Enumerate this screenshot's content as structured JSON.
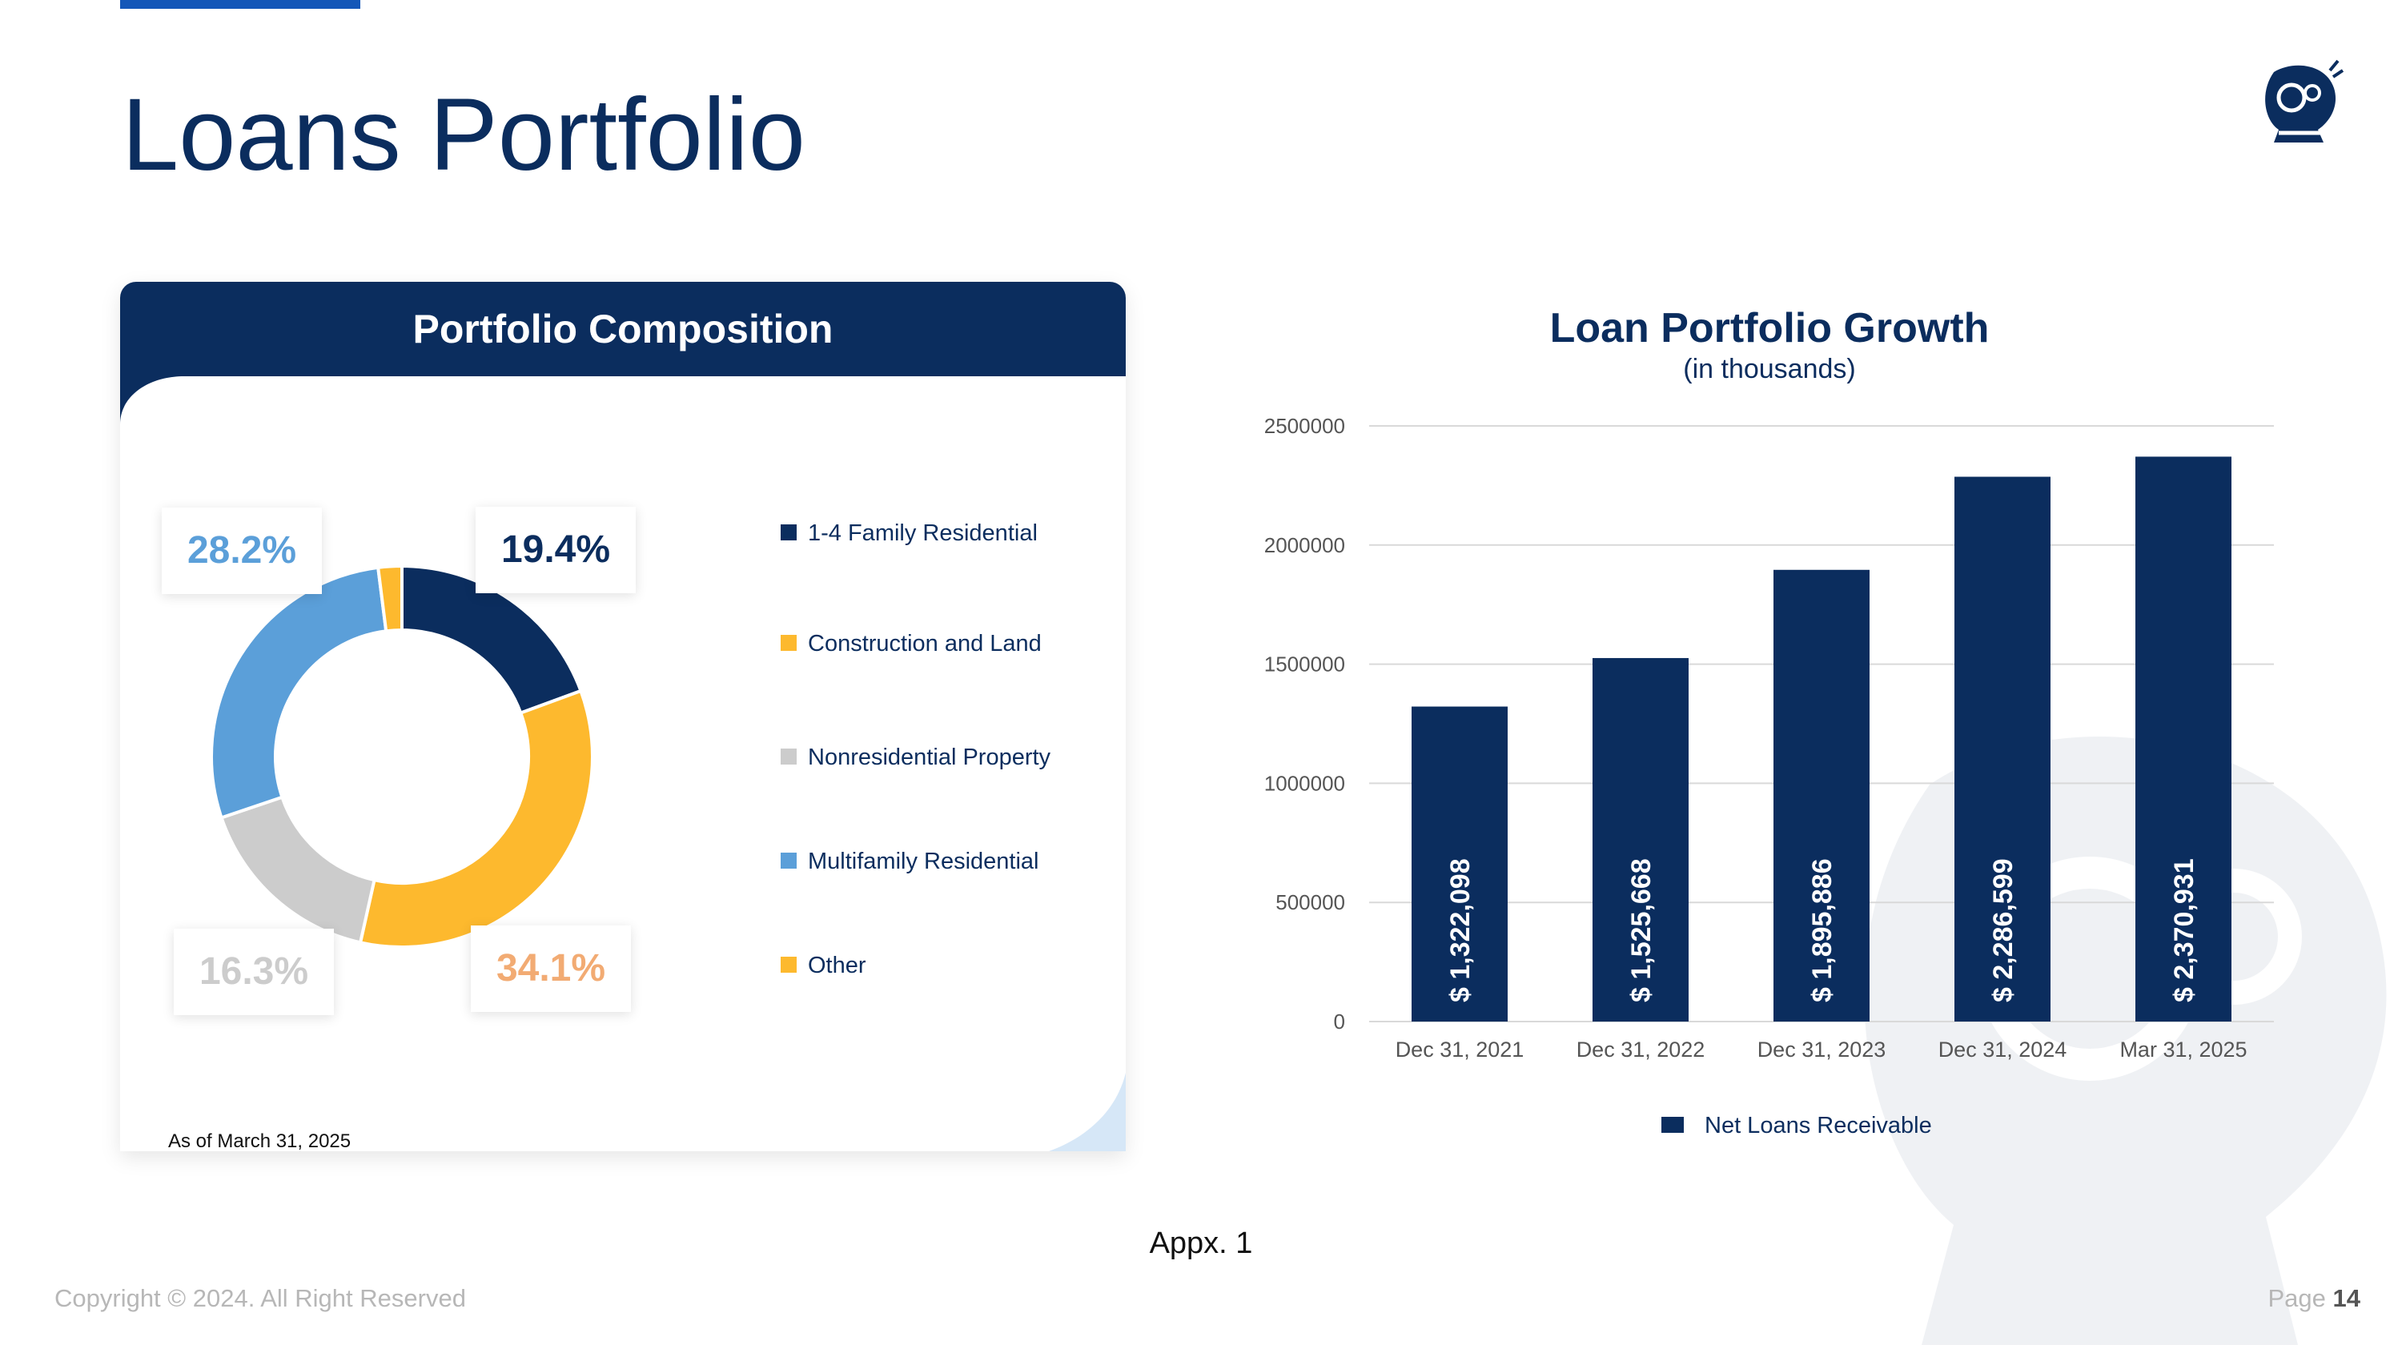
{
  "page": {
    "title": "Loans Portfolio",
    "appendix_label": "Appx. 1",
    "copyright": "Copyright © 2024. All Right Reserved",
    "page_label": "Page",
    "page_number": "14"
  },
  "colors": {
    "navy": "#0b2d5e",
    "yellow": "#fdb92e",
    "gray": "#cccccc",
    "light_blue": "#5b9fd9",
    "orange_label": "#f2ab73"
  },
  "composition_card": {
    "title": "Portfolio Composition",
    "footnote": "As of March 31, 2025"
  },
  "growth_chart": {
    "title": "Loan Portfolio Growth",
    "subtitle": "(in thousands)"
  },
  "chart_data": [
    {
      "type": "pie",
      "donut": true,
      "title": "Portfolio Composition",
      "legend": [
        "1-4 Family Residential",
        "Construction and Land",
        "Nonresidential Property",
        "Multifamily Residential",
        "Other"
      ],
      "legend_colors": [
        "#0b2d5e",
        "#fdb92e",
        "#cccccc",
        "#5b9fd9",
        "#fdb92e"
      ],
      "slices": [
        {
          "value": 19.4,
          "color": "#0b2d5e"
        },
        {
          "value": 34.1,
          "color": "#fdb92e"
        },
        {
          "value": 16.3,
          "color": "#cccccc"
        },
        {
          "value": 28.2,
          "color": "#5b9fd9"
        },
        {
          "value": 2.0,
          "color": "#fdb92e"
        }
      ],
      "labels": [
        {
          "text": "19.4%",
          "color": "#0b2d5e"
        },
        {
          "text": "34.1%",
          "color": "#f2ab73"
        },
        {
          "text": "16.3%",
          "color": "#cccccc"
        },
        {
          "text": "28.2%",
          "color": "#5b9fd9"
        }
      ],
      "legend_placement": "right"
    },
    {
      "type": "bar",
      "title": "Loan Portfolio Growth",
      "subtitle": "(in thousands)",
      "categories": [
        "Dec 31, 2021",
        "Dec 31, 2022",
        "Dec 31, 2023",
        "Dec 31, 2024",
        "Mar 31, 2025"
      ],
      "series": [
        {
          "name": "Net Loans Receivable",
          "values": [
            1322098,
            1525668,
            1895886,
            2286599,
            2370931
          ],
          "color": "#0b2d5e"
        }
      ],
      "data_labels": [
        "$ 1,322,098",
        "$ 1,525,668",
        "$ 1,895,886",
        "$ 2,286,599",
        "$ 2,370,931"
      ],
      "y_ticks": [
        "0",
        "500000",
        "1000000",
        "1500000",
        "2000000",
        "2500000"
      ],
      "ylim": [
        0,
        2500000
      ],
      "grid": true,
      "legend_placement": "bottom"
    }
  ]
}
